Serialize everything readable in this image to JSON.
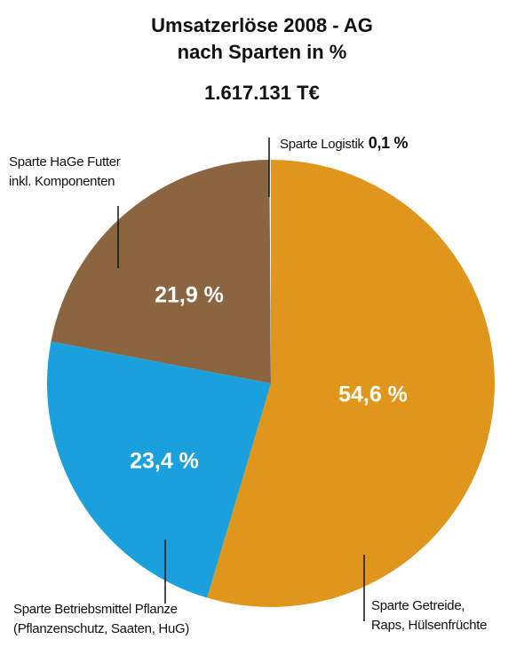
{
  "chart_data": {
    "type": "pie",
    "title": "Umsatzerlöse 2008 - AG\nnach Sparten in %",
    "subtitle": "1.617.131 T€",
    "categories": [
      "Sparte Getreide,\nRaps, Hülsenfrüchte",
      "Sparte Betriebsmittel Pflanze\n(Pflanzenschutz, Saaten, HuG)",
      "Sparte HaGe Futter\ninkl. Komponenten",
      "Sparte Logistik"
    ],
    "values": [
      54.6,
      23.4,
      21.9,
      0.1
    ],
    "value_labels": [
      "54,6 %",
      "23,4 %",
      "21,9 %",
      "0,1 %"
    ],
    "colors": [
      "#e0961a",
      "#1aa0dc",
      "#8b6440",
      "#f2efe9"
    ]
  }
}
